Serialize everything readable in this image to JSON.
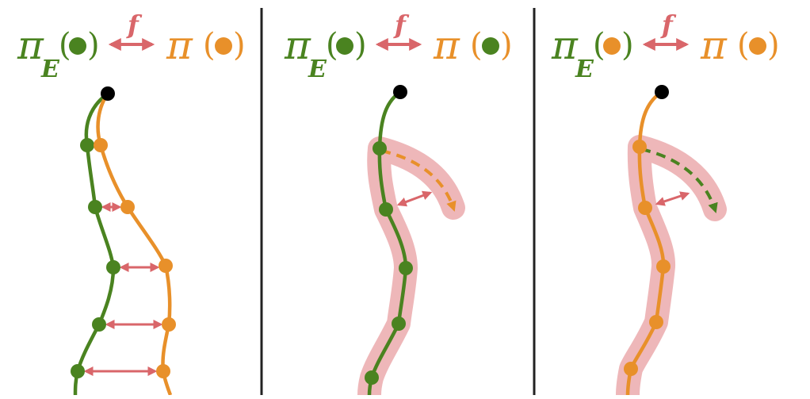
{
  "colors": {
    "expert": "#4a8320",
    "policy": "#e8902a",
    "divergence": "#d9666a",
    "highlight": "#e07c80",
    "start": "#000000",
    "divider": "#222222"
  },
  "symbols": {
    "pi": "π",
    "expert_subscript": "E",
    "f": "f",
    "open_paren": "(",
    "close_paren": ")"
  },
  "panels": [
    {
      "label_left": {
        "symbol": "π",
        "subscript": "E",
        "state_dot": "expert"
      },
      "label_right": {
        "symbol": "π",
        "state_dot": "policy"
      },
      "relation": "f",
      "description_icons": [
        "start-state",
        "expert-trajectory",
        "policy-trajectory",
        "per-state-divergence-arrows"
      ]
    },
    {
      "label_left": {
        "symbol": "π",
        "subscript": "E",
        "state_dot": "expert"
      },
      "label_right": {
        "symbol": "π",
        "state_dot": "expert"
      },
      "relation": "f",
      "description_icons": [
        "start-state",
        "expert-trajectory",
        "highlighted-tube",
        "policy-dashed-step",
        "divergence-arrow"
      ]
    },
    {
      "label_left": {
        "symbol": "π",
        "subscript": "E",
        "state_dot": "policy"
      },
      "label_right": {
        "symbol": "π",
        "state_dot": "policy"
      },
      "relation": "f",
      "description_icons": [
        "start-state",
        "policy-trajectory",
        "highlighted-tube",
        "expert-dashed-step",
        "divergence-arrow"
      ]
    }
  ]
}
